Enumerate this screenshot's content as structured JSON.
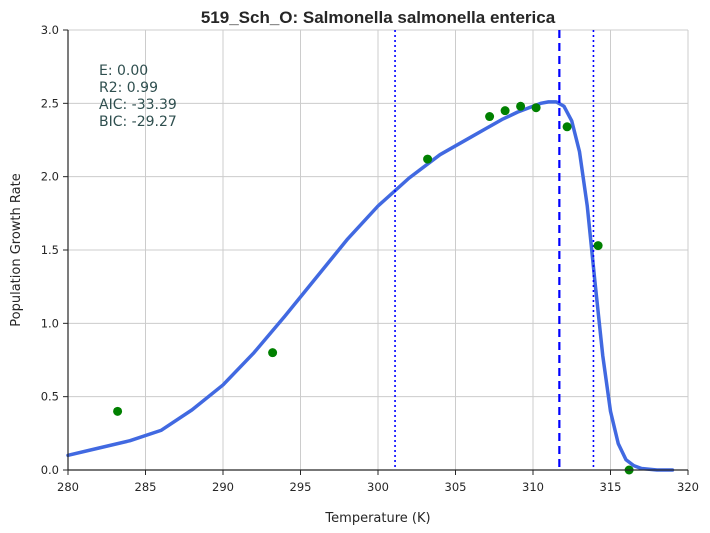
{
  "chart_data": {
    "type": "scatter",
    "title": "519_Sch_O: Salmonella salmonella enterica",
    "xlabel": "Temperature (K)",
    "ylabel": "Population Growth Rate",
    "xlim": [
      280,
      320
    ],
    "ylim": [
      0,
      3.0
    ],
    "xticks": [
      "280",
      "285",
      "290",
      "295",
      "300",
      "305",
      "310",
      "315",
      "320"
    ],
    "yticks": [
      "0.0",
      "0.5",
      "1.0",
      "1.5",
      "2.0",
      "2.5",
      "3.0"
    ],
    "grid": true,
    "stats": [
      "E:  0.00",
      "R2:  0.99",
      "AIC: -33.39",
      "BIC: -29.27"
    ],
    "points": {
      "x": [
        283.2,
        293.2,
        303.2,
        307.2,
        308.2,
        309.2,
        310.2,
        312.2,
        314.2,
        316.2
      ],
      "y": [
        0.4,
        0.8,
        2.12,
        2.41,
        2.45,
        2.48,
        2.47,
        2.34,
        1.53,
        0.0
      ],
      "color": "#008000"
    },
    "fit_curve": {
      "color": "#4169e1",
      "x": [
        280,
        282,
        284,
        286,
        288,
        290,
        292,
        294,
        296,
        298,
        300,
        302,
        304,
        306,
        307,
        308,
        309,
        310,
        310.5,
        311,
        311.5,
        312,
        312.5,
        313,
        313.5,
        314,
        314.5,
        315,
        315.5,
        316,
        316.5,
        317,
        318,
        319
      ],
      "y": [
        0.1,
        0.15,
        0.2,
        0.27,
        0.41,
        0.58,
        0.8,
        1.05,
        1.31,
        1.57,
        1.8,
        1.99,
        2.15,
        2.27,
        2.33,
        2.39,
        2.44,
        2.48,
        2.5,
        2.51,
        2.51,
        2.48,
        2.38,
        2.17,
        1.8,
        1.28,
        0.78,
        0.4,
        0.18,
        0.07,
        0.03,
        0.01,
        0.0,
        0.0
      ]
    },
    "vlines": [
      {
        "x": 311.7,
        "style": "dashed",
        "color": "#0000ff"
      },
      {
        "x": 301.1,
        "style": "dotted",
        "color": "#0000ff"
      },
      {
        "x": 313.9,
        "style": "dotted",
        "color": "#0000ff"
      }
    ]
  }
}
